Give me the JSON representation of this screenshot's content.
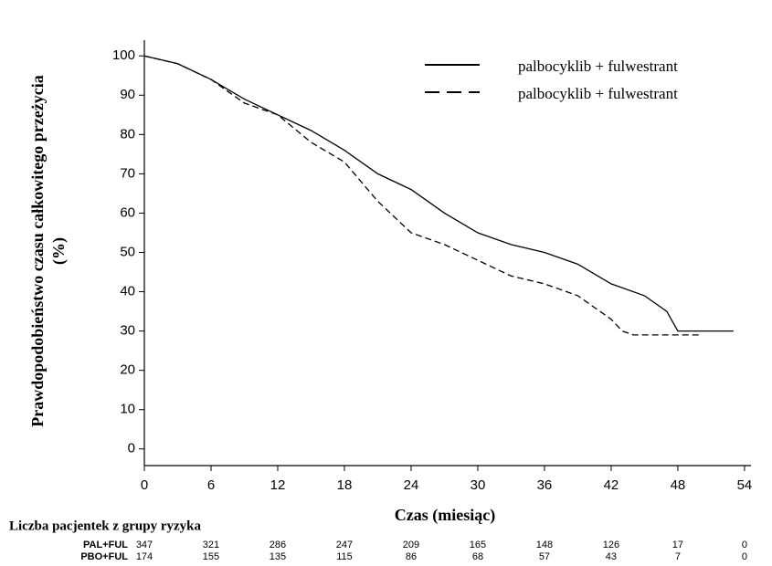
{
  "chart_data": {
    "type": "line",
    "ylabel": [
      "Prawdopodobieństwo czasu całkowitego przeżycia",
      "(%)"
    ],
    "xlabel": "Czas (miesiąc)",
    "xlim": [
      0,
      54.5
    ],
    "xticks": [
      0,
      6,
      12,
      18,
      24,
      30,
      36,
      42,
      48,
      54
    ],
    "ylim": [
      -4,
      104
    ],
    "yticks": [
      0,
      10,
      20,
      30,
      40,
      50,
      60,
      70,
      80,
      90,
      100
    ],
    "legend": "top-right",
    "series": [
      {
        "name": "palbocyklib + fulwestrant",
        "color": "#000000",
        "line_style": "solid",
        "x": [
          0,
          3,
          6,
          9,
          12,
          15,
          18,
          21,
          24,
          27,
          30,
          33,
          36,
          39,
          42,
          45,
          47,
          48,
          53
        ],
        "values": [
          100,
          98,
          94,
          89,
          85,
          81,
          76,
          70,
          66,
          60,
          55,
          52,
          50,
          47,
          42,
          39,
          35,
          30,
          30
        ]
      },
      {
        "name": "palbocyklib + fulwestrant",
        "color": "#000000",
        "line_style": "dashed",
        "x": [
          0,
          3,
          6,
          9,
          12,
          15,
          18,
          21,
          24,
          27,
          30,
          33,
          36,
          39,
          42,
          43,
          44,
          50
        ],
        "values": [
          100,
          98,
          94,
          88,
          85,
          78,
          73,
          63,
          55,
          52,
          48,
          44,
          42,
          39,
          33,
          30,
          29,
          29
        ]
      }
    ],
    "risk_table": {
      "title": "Liczba pacjentek z grupy ryzyka",
      "rows": [
        {
          "label": "PAL+FUL",
          "values": [
            347,
            321,
            286,
            247,
            209,
            165,
            148,
            126,
            17,
            0
          ]
        },
        {
          "label": "PBO+FUL",
          "values": [
            174,
            155,
            135,
            115,
            86,
            68,
            57,
            43,
            7,
            0
          ]
        }
      ]
    }
  }
}
